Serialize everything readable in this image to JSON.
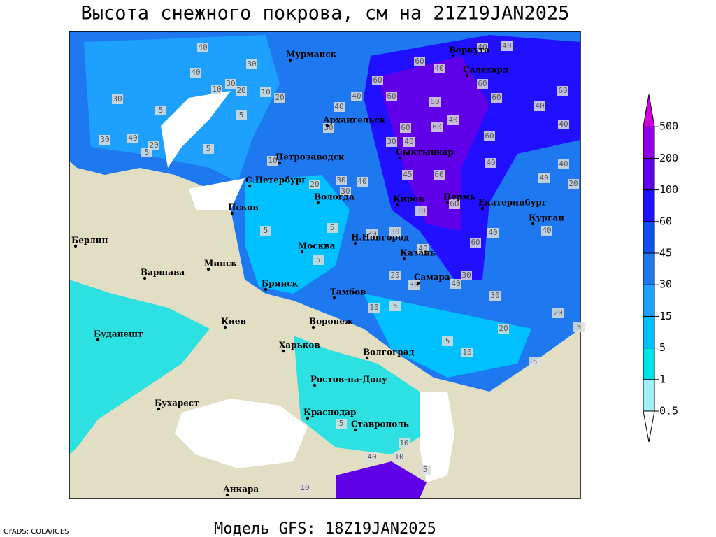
{
  "title": "Высота снежного покрова, см на 21Z19JAN2025",
  "footer": "Модель GFS: 18Z19JAN2025",
  "credit": "GrADS: COLA/IGES",
  "legend": {
    "levels": [
      0.5,
      1,
      5,
      15,
      30,
      45,
      60,
      100,
      200,
      500
    ],
    "colors": [
      "#ffffff",
      "#a0f0f8",
      "#00e0e8",
      "#00c0ff",
      "#1ea0ff",
      "#1e78f0",
      "#1050f0",
      "#2010ff",
      "#6000e8",
      "#9000e8",
      "#d000e0"
    ]
  },
  "cities": [
    "Мурманск",
    "Воркута",
    "Салехард",
    "Архангельск",
    "Петрозаводск",
    "Сыктывкар",
    "С.Петербург",
    "Вологда",
    "Киров",
    "Пермь",
    "Екатеринбург",
    "Курган",
    "Псков",
    "Берлин",
    "Н.Новгород",
    "Москва",
    "Казань",
    "Минск",
    "Варшава",
    "Самара",
    "Брянск",
    "Тамбов",
    "Воронеж",
    "Киев",
    "Будапешт",
    "Харьков",
    "Волгоград",
    "Ростов-на-Дону",
    "Бухарест",
    "Краснодар",
    "Ставрополь",
    "Анкара"
  ],
  "contour_labels": [
    40,
    40,
    30,
    10,
    30,
    20,
    10,
    20,
    30,
    5,
    5,
    40,
    30,
    20,
    5,
    5,
    10,
    30,
    40,
    40,
    60,
    60,
    40,
    40,
    40,
    60,
    60,
    60,
    40,
    40,
    60,
    60,
    40,
    60,
    60,
    60,
    30,
    40,
    40,
    40,
    40,
    20,
    60,
    45,
    40,
    30,
    20,
    30,
    30,
    60,
    40,
    40,
    60,
    40,
    30,
    30,
    5,
    5,
    5,
    20,
    30,
    40,
    30,
    30,
    20,
    20,
    5,
    5,
    10,
    5,
    10,
    5,
    5,
    10,
    40,
    10,
    5,
    10
  ]
}
